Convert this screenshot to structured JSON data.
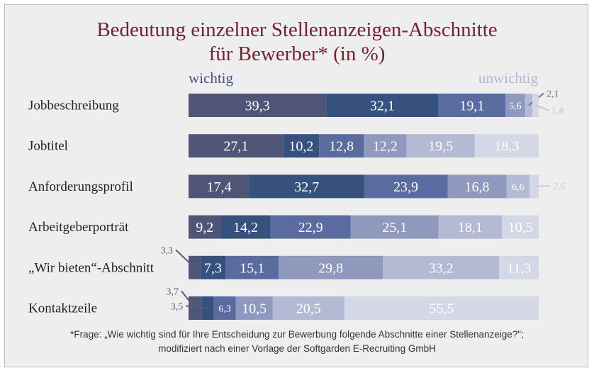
{
  "title": {
    "line1": "Bedeutung einzelner Stellenanzeigen-Abschnitte",
    "line2": "für Bewerber* (in %)"
  },
  "legend": {
    "left": "wichtig",
    "right": "unwichtig"
  },
  "footnote": {
    "line1": "*Frage: „Wie wichtig sind für Ihre Entscheidung zur Bewerbung folgende Abschnitte einer Stellenanzeige?\";",
    "line2": "modifiziert nach einer Vorlage der Softgarden E-Recruiting GmbH"
  },
  "colors": {
    "background": "#eeeeee",
    "title": "#7a1f2f",
    "segments": [
      "#4e5576",
      "#36517e",
      "#5a6b9f",
      "#8f98bd",
      "#b4bad3",
      "#d4d7e5"
    ]
  },
  "chart_data": {
    "type": "bar",
    "orientation": "horizontal",
    "stacked": true,
    "unit": "%",
    "categories": [
      "Jobbeschreibung",
      "Jobtitel",
      "Anforderungsprofil",
      "Arbeitgeberporträt",
      "„Wir bieten“-Abschnitt",
      "Kontaktzeile"
    ],
    "values": [
      [
        39.3,
        32.1,
        19.1,
        5.6,
        2.1,
        1.8
      ],
      [
        27.1,
        10.2,
        12.8,
        12.2,
        19.5,
        18.3
      ],
      [
        17.4,
        32.7,
        23.9,
        16.8,
        6.6,
        2.6
      ],
      [
        9.2,
        14.2,
        22.9,
        25.1,
        18.1,
        10.5
      ],
      [
        3.3,
        7.3,
        15.1,
        29.8,
        33.2,
        11.3
      ],
      [
        3.7,
        3.5,
        6.3,
        10.5,
        20.5,
        55.5
      ]
    ],
    "labels": [
      [
        "39,3",
        "32,1",
        "19,1",
        "5,6",
        "2,1",
        "1,8"
      ],
      [
        "27,1",
        "10,2",
        "12,8",
        "12,2",
        "19,5",
        "18,3"
      ],
      [
        "17,4",
        "32,7",
        "23,9",
        "16,8",
        "6,6",
        "2,6"
      ],
      [
        "9,2",
        "14,2",
        "22,9",
        "25,1",
        "18,1",
        "10,5"
      ],
      [
        "3,3",
        "7,3",
        "15,1",
        "29,8",
        "33,2",
        "11,3"
      ],
      [
        "3,7",
        "3,5",
        "6,3",
        "10,5",
        "20,5",
        "55,5"
      ]
    ],
    "scale_from": "wichtig",
    "scale_to": "unwichtig"
  }
}
